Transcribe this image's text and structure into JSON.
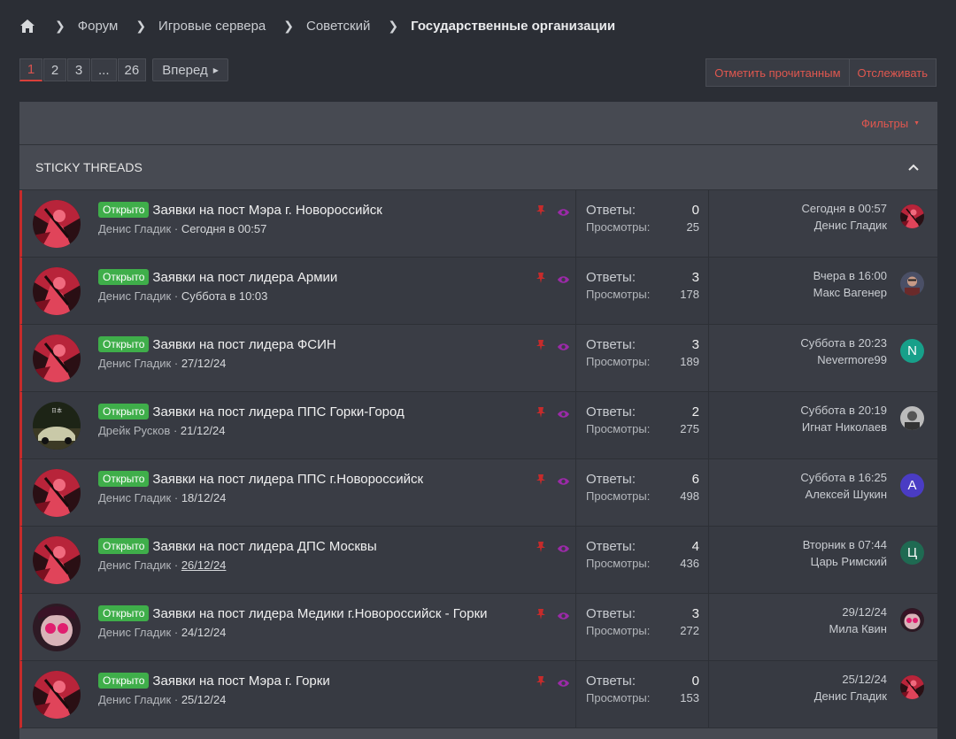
{
  "breadcrumb": {
    "items": [
      "Форум",
      "Игровые сервера",
      "Советский"
    ],
    "current": "Государственные организации"
  },
  "pager": {
    "pages": [
      "1",
      "2",
      "3",
      "...",
      "26"
    ],
    "next": "Вперед"
  },
  "actions": {
    "mark_read": "Отметить прочитанным",
    "watch": "Отслеживать"
  },
  "filters": {
    "label": "Фильтры"
  },
  "sticky": {
    "title": "STICKY THREADS"
  },
  "labels": {
    "replies": "Ответы:",
    "views": "Просмотры:",
    "badge": "Открыто"
  },
  "colors": {
    "accent": "#d9403a",
    "badge": "#3fae4a",
    "sticky_bar": "#c62b2b",
    "pin": "#c62b2b",
    "watch": "#9b2aa8"
  },
  "threads": [
    {
      "title": "Заявки на пост Мэра г. Новороссийск",
      "author": "Денис Гладик",
      "date": "Сегодня в 00:57",
      "replies": "0",
      "views": "25",
      "last_date": "Сегодня в 00:57",
      "last_user": "Денис Гладик",
      "avatar": "red-anime-avatar",
      "mini": "red-anime-avatar"
    },
    {
      "title": "Заявки на пост лидера Армии",
      "author": "Денис Гладик",
      "date": "Суббота в 10:03",
      "replies": "3",
      "views": "178",
      "last_date": "Вчера в 16:00",
      "last_user": "Макс Вагенер",
      "avatar": "red-anime-avatar",
      "mini": "photo-avatar"
    },
    {
      "title": "Заявки на пост лидера ФСИН",
      "author": "Денис Гладик",
      "date": "27/12/24",
      "replies": "3",
      "views": "189",
      "last_date": "Суббота в 20:23",
      "last_user": "Nevermore99",
      "avatar": "red-anime-avatar",
      "mini": "N"
    },
    {
      "title": "Заявки на пост лидера ППС Горки-Город",
      "author": "Дрейк Русков",
      "date": "21/12/24",
      "replies": "2",
      "views": "275",
      "last_date": "Суббота в 20:19",
      "last_user": "Игнат Николаев",
      "avatar": "car-avatar",
      "mini": "bw-photo-avatar"
    },
    {
      "title": "Заявки на пост лидера ППС г.Новороссийск",
      "author": "Денис Гладик",
      "date": "18/12/24",
      "replies": "6",
      "views": "498",
      "last_date": "Суббота в 16:25",
      "last_user": "Алексей Шукин",
      "avatar": "red-anime-avatar",
      "mini": "A"
    },
    {
      "title": "Заявки на пост лидера ДПС Москвы",
      "author": "Денис Гладик",
      "date": "26/12/24",
      "replies": "4",
      "views": "436",
      "last_date": "Вторник в 07:44",
      "last_user": "Царь Римский",
      "avatar": "red-anime-avatar",
      "mini": "Ц"
    },
    {
      "title": "Заявки на пост лидера Медики г.Новороссийск - Горки",
      "author": "Денис Гладик",
      "date": "24/12/24",
      "replies": "3",
      "views": "272",
      "last_date": "29/12/24",
      "last_user": "Мила Квин",
      "avatar": "pink-face-avatar",
      "mini": "pink-face-avatar"
    },
    {
      "title": "Заявки на пост Мэра г. Горки",
      "author": "Денис Гладик",
      "date": "25/12/24",
      "replies": "0",
      "views": "153",
      "last_date": "25/12/24",
      "last_user": "Денис Гладик",
      "avatar": "red-anime-avatar",
      "mini": "red-anime-avatar"
    }
  ]
}
